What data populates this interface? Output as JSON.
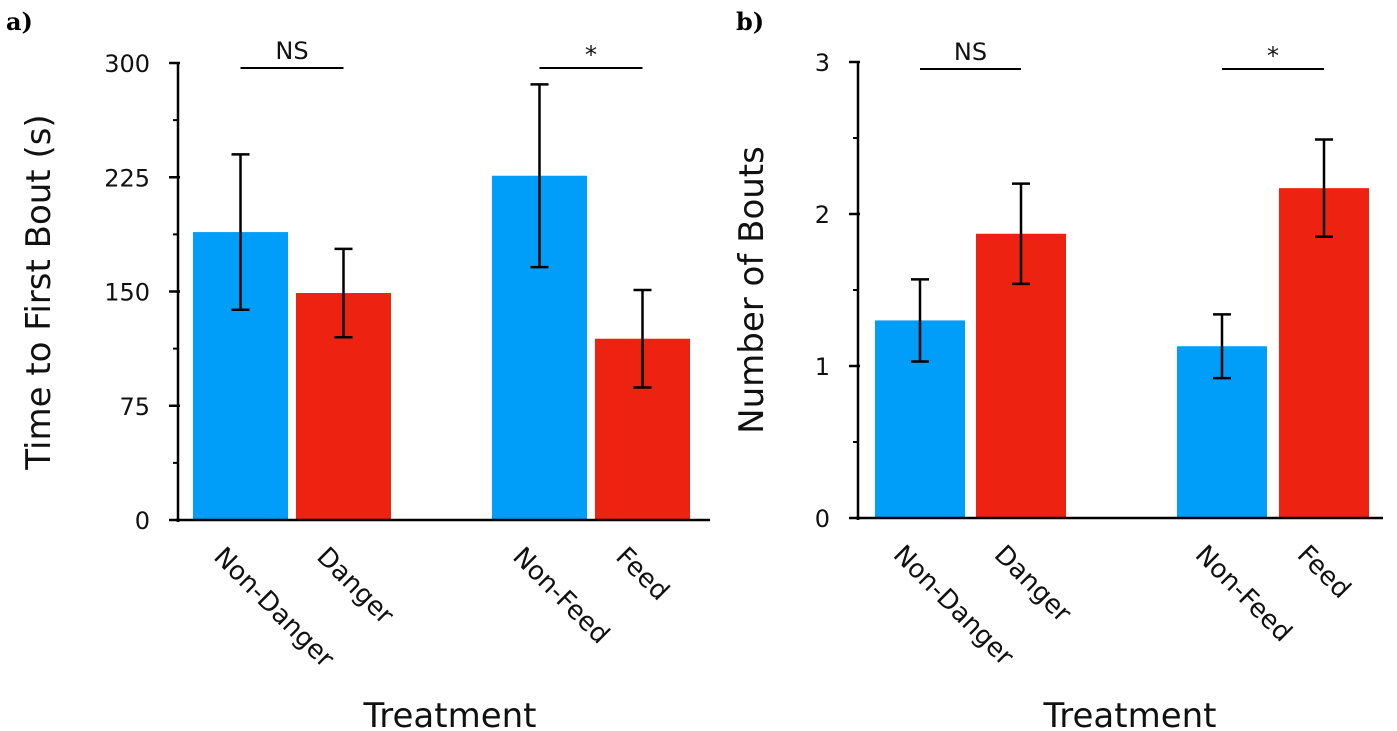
{
  "chart_data": [
    {
      "panel": "a)",
      "type": "bar",
      "categories": [
        "Non-Danger",
        "Danger",
        "Non-Feed",
        "Feed"
      ],
      "values": [
        189,
        149,
        226,
        119
      ],
      "errors": [
        51,
        29,
        60,
        32
      ],
      "colors": [
        "#009ef8",
        "#ee2211",
        "#009ef8",
        "#ee2211"
      ],
      "ylabel": "Time to First Bout (s)",
      "xlabel": "Treatment",
      "ylim": [
        0,
        300
      ],
      "yticks": [
        0,
        75,
        150,
        225,
        300
      ],
      "significance": [
        {
          "label": "NS",
          "between": [
            0,
            1
          ]
        },
        {
          "label": "*",
          "between": [
            2,
            3
          ]
        }
      ]
    },
    {
      "panel": "b)",
      "type": "bar",
      "categories": [
        "Non-Danger",
        "Danger",
        "Non-Feed",
        "Feed"
      ],
      "values": [
        1.3,
        1.87,
        1.13,
        2.17
      ],
      "errors": [
        0.27,
        0.33,
        0.21,
        0.32
      ],
      "colors": [
        "#009ef8",
        "#ee2211",
        "#009ef8",
        "#ee2211"
      ],
      "ylabel": "Number of Bouts",
      "xlabel": "Treatment",
      "ylim": [
        0,
        3
      ],
      "yticks": [
        0,
        1,
        2,
        3
      ],
      "significance": [
        {
          "label": "NS",
          "between": [
            0,
            1
          ]
        },
        {
          "label": "*",
          "between": [
            2,
            3
          ]
        }
      ]
    }
  ]
}
